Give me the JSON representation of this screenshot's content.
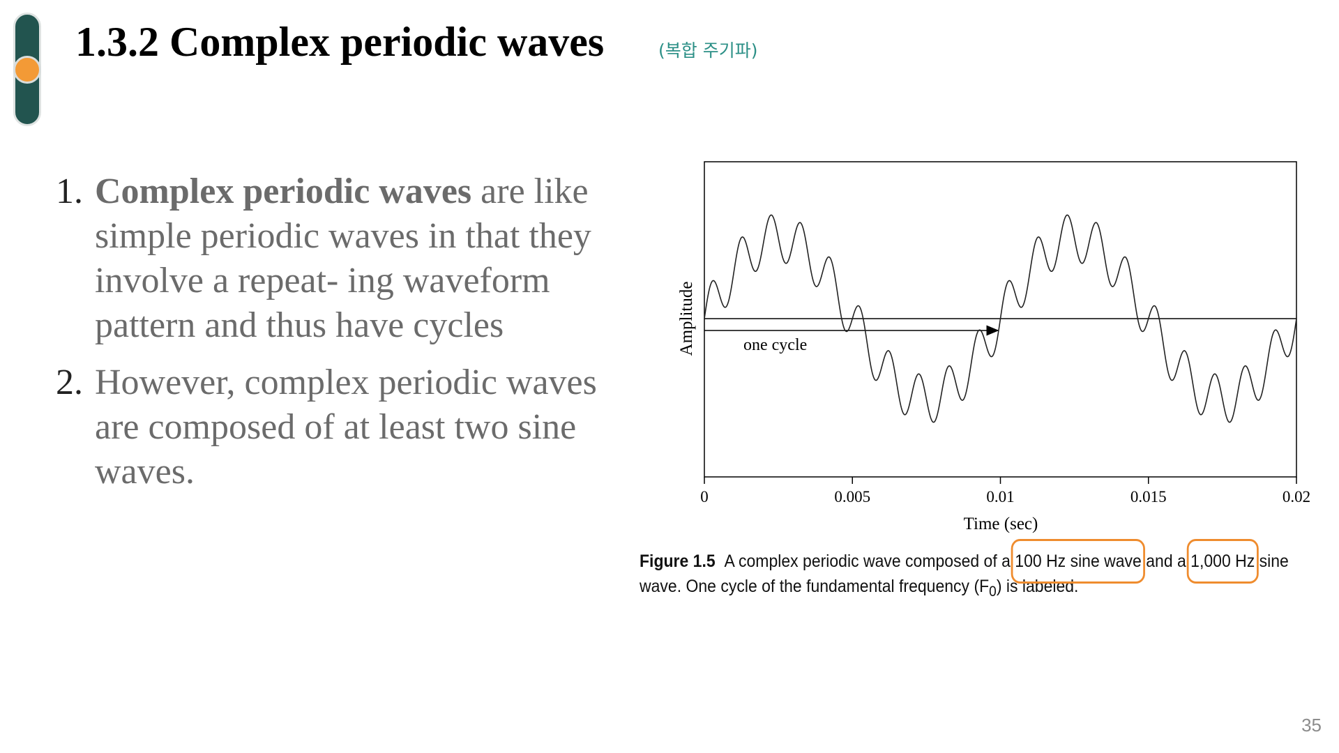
{
  "header": {
    "title": "1.3.2 Complex periodic waves",
    "subtitle": "(복합 주기파)"
  },
  "list": [
    {
      "number": "1.",
      "bold": "Complex periodic waves",
      "rest": " are like simple periodic waves in that they involve a repeat- ing waveform pattern and thus have cycles"
    },
    {
      "number": "2.",
      "text": " However, complex periodic waves are composed of at least two sine waves."
    }
  ],
  "figure": {
    "xlabel": "Time (sec)",
    "ylabel": "Amplitude",
    "ticks": [
      "0",
      "0.005",
      "0.01",
      "0.015",
      "0.02"
    ],
    "annotation": "one cycle",
    "caption": {
      "label": "Figure 1.5",
      "part1": "A complex periodic wave composed of a ",
      "hl1": "100 Hz sine wave",
      "part2": " and a ",
      "hl2": "1,000 Hz",
      "part3": " sine",
      "line2": "wave. One cycle of the fundamental frequency (F",
      "sub": "0",
      "line2_end": ") is labeled."
    },
    "highlight_color": "#ef8c2e"
  },
  "chart_data": {
    "type": "line",
    "title": "",
    "xlabel": "Time (sec)",
    "ylabel": "Amplitude",
    "xlim": [
      0,
      0.02
    ],
    "xticks": [
      0,
      0.005,
      0.01,
      0.015,
      0.02
    ],
    "series": [
      {
        "components_hz": [
          100,
          1000
        ],
        "amplitude_ratio": [
          1,
          0.3
        ]
      }
    ],
    "annotations": [
      {
        "text": "one cycle",
        "from_x": 0,
        "to_x": 0.01
      }
    ]
  },
  "page_number": "35",
  "colors": {
    "accent": "#22544f",
    "dot": "#f39a36",
    "subtitle": "#2b8f86"
  }
}
